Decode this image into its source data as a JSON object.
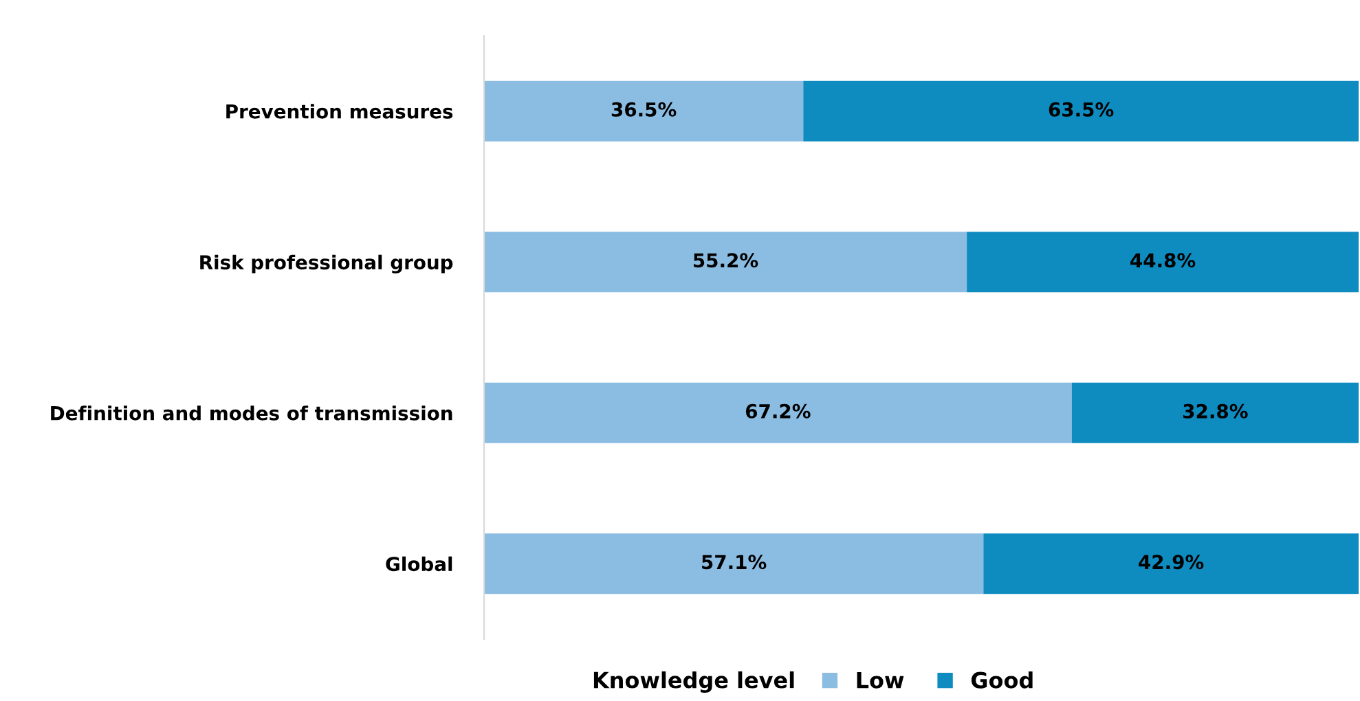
{
  "chart_data": {
    "type": "bar",
    "orientation": "horizontal",
    "stacked": true,
    "categories": [
      "Prevention measures",
      "Risk professional group",
      "Definition and modes of transmission",
      "Global"
    ],
    "series": [
      {
        "name": "Low",
        "color": "#8bbce2",
        "values": [
          36.5,
          55.2,
          67.2,
          57.1
        ],
        "value_labels": [
          "36.5%",
          "55.2%",
          "67.2%",
          "57.1%"
        ]
      },
      {
        "name": "Good",
        "color": "#0e8bbf",
        "values": [
          63.5,
          44.8,
          32.8,
          42.9
        ],
        "value_labels": [
          "63.5%",
          "44.8%",
          "32.8%",
          "42.9%"
        ]
      }
    ],
    "xlim": [
      0,
      100
    ],
    "tick_labels": "y",
    "grid": false,
    "legend": "bottom",
    "legend_title": "Knowledge level"
  }
}
